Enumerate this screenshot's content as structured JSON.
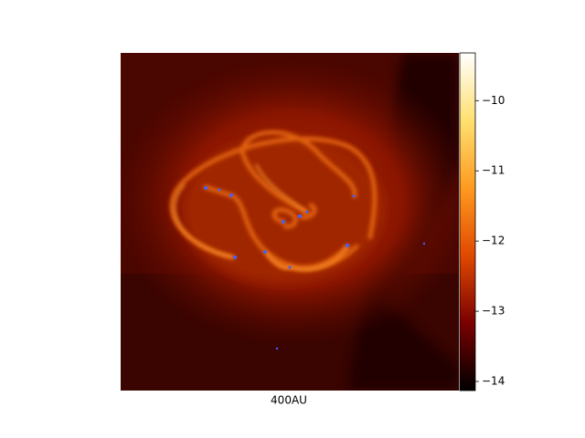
{
  "chart_data": {
    "type": "image",
    "xlabel": "400AU",
    "colorbar": {
      "lim": [
        -14.13,
        -9.32
      ],
      "ticks": [
        {
          "value": -10,
          "label": "−10"
        },
        {
          "value": -11,
          "label": "−11"
        },
        {
          "value": -12,
          "label": "−12"
        },
        {
          "value": -13,
          "label": "−13"
        },
        {
          "value": -14,
          "label": "−14"
        }
      ],
      "colors": [
        "#000000",
        "#7a0000",
        "#e04a00",
        "#ff9a20",
        "#ffe070",
        "#ffffff"
      ]
    }
  }
}
